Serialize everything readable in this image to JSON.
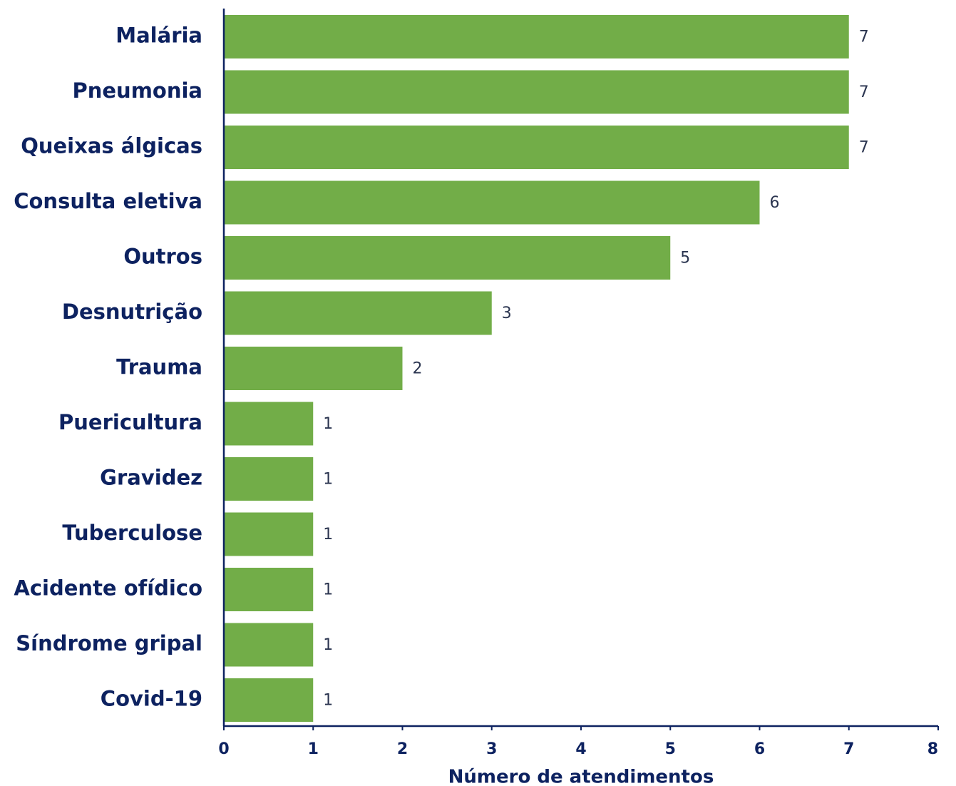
{
  "chart_data": {
    "type": "bar",
    "orientation": "horizontal",
    "categories": [
      "Malária",
      "Pneumonia",
      "Queixas álgicas",
      "Consulta eletiva",
      "Outros",
      "Desnutrição",
      "Trauma",
      "Puericultura",
      "Gravidez",
      "Tuberculose",
      "Acidente ofídico",
      "Síndrome gripal",
      "Covid-19"
    ],
    "values": [
      7,
      7,
      7,
      6,
      5,
      3,
      2,
      1,
      1,
      1,
      1,
      1,
      1
    ],
    "xlabel": "Número de atendimentos",
    "ylabel": "",
    "xlim": [
      0,
      8
    ],
    "xticks": [
      0,
      1,
      2,
      3,
      4,
      5,
      6,
      7,
      8
    ],
    "grid": false,
    "legend": "none",
    "data_labels": true,
    "colors": {
      "bar": "#72ad48",
      "axis": "#0d2260",
      "text": "#0d2260",
      "value_text": "#2b3550"
    }
  }
}
